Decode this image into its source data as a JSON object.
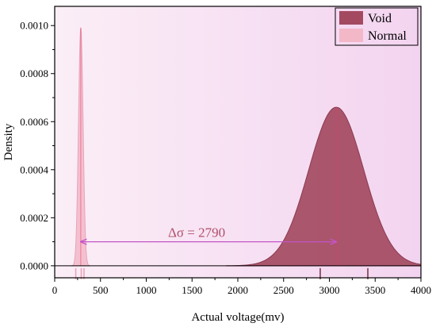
{
  "chart_data": {
    "type": "area",
    "title": "",
    "xlabel": "Actual voltage(mv)",
    "ylabel": "Density",
    "xlim": [
      0,
      4000
    ],
    "ylim": [
      -5e-05,
      0.00108
    ],
    "grid": false,
    "legend_position": "top-right",
    "x_ticks": [
      {
        "value": 0,
        "label": "0"
      },
      {
        "value": 500,
        "label": "500"
      },
      {
        "value": 1000,
        "label": "1000"
      },
      {
        "value": 1500,
        "label": "1500"
      },
      {
        "value": 2000,
        "label": "2000"
      },
      {
        "value": 2500,
        "label": "2500"
      },
      {
        "value": 3000,
        "label": "3000"
      },
      {
        "value": 3500,
        "label": "3500"
      },
      {
        "value": 4000,
        "label": "4000"
      }
    ],
    "y_ticks": [
      {
        "value": 0.0,
        "label": "0.0000"
      },
      {
        "value": 0.0002,
        "label": "0.0002"
      },
      {
        "value": 0.0004,
        "label": "0.0004"
      },
      {
        "value": 0.0006,
        "label": "0.0006"
      },
      {
        "value": 0.0008,
        "label": "0.0008"
      },
      {
        "value": 0.001,
        "label": "0.0010"
      }
    ],
    "series": [
      {
        "name": "Void",
        "distribution": "normal",
        "mean": 3075,
        "std": 300,
        "peak_density": 0.00066,
        "color": "#a34a61",
        "rug": [
          2900,
          3420
        ]
      },
      {
        "name": "Normal",
        "distribution": "normal",
        "mean": 285,
        "std": 25,
        "peak_density": 0.00099,
        "color": "#f2b8c8",
        "rug": [
          230,
          290,
          320
        ]
      }
    ],
    "annotation": {
      "text": "Δσ = 2790",
      "from_x": 285,
      "to_x": 3075,
      "y": 0.0001,
      "color": "#c455c8"
    },
    "background_gradient": [
      "#fbeef6",
      "#f3d4f0"
    ]
  }
}
